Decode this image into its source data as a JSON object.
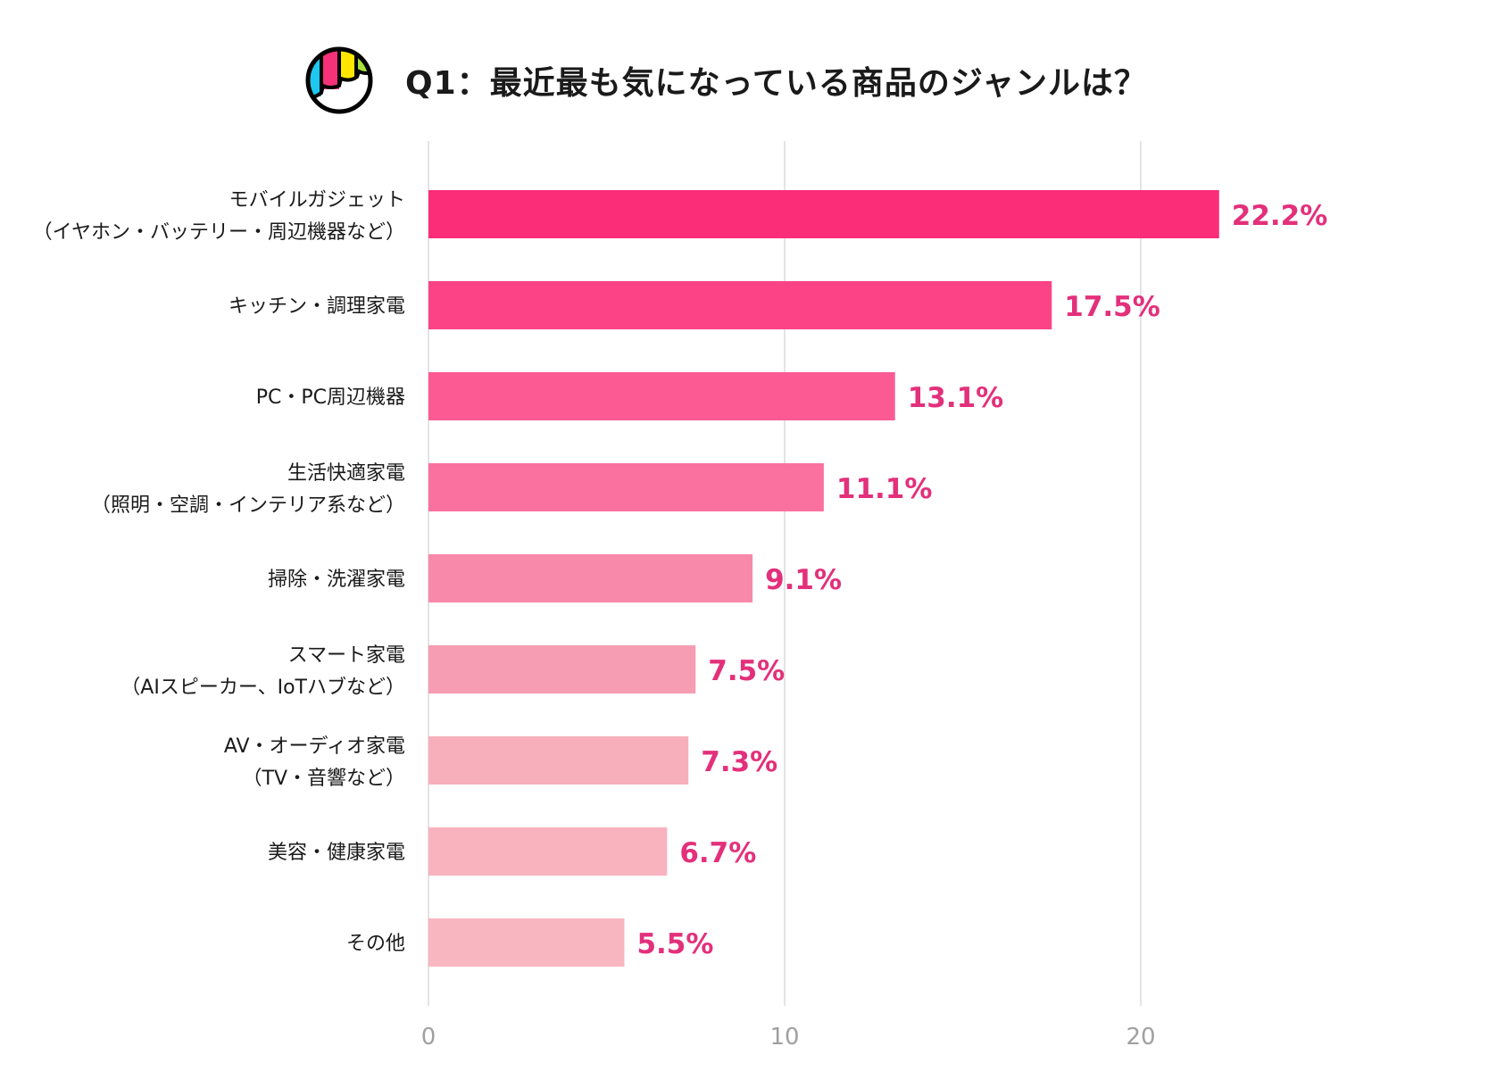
{
  "chart_data": {
    "type": "bar",
    "orientation": "horizontal",
    "title": "Q1：最近最も気になっている商品のジャンルは？",
    "categories": [
      [
        "モバイルガジェット",
        "（イヤホン・バッテリー・周辺機器など）"
      ],
      [
        "キッチン・調理家電"
      ],
      [
        "PC・PC周辺機器"
      ],
      [
        "生活快適家電",
        "（照明・空調・インテリア系など）"
      ],
      [
        "掃除・洗濯家電"
      ],
      [
        "スマート家電",
        "（AIスピーカー、IoTハブなど）"
      ],
      [
        "AV・オーディオ家電",
        "（TV・音響など）"
      ],
      [
        "美容・健康家電"
      ],
      [
        "その他"
      ]
    ],
    "values": [
      22.2,
      17.5,
      13.1,
      11.1,
      9.1,
      7.5,
      7.3,
      6.7,
      5.5
    ],
    "value_labels": [
      "22.2%",
      "17.5%",
      "13.1%",
      "11.1%",
      "9.1%",
      "7.5%",
      "7.3%",
      "6.7%",
      "5.5%"
    ],
    "bar_colors": [
      "#fb2c78",
      "#fc4385",
      "#fb5a92",
      "#fa71a0",
      "#f889aa",
      "#f79db3",
      "#f8afbc",
      "#f8b3be",
      "#f8b6c0"
    ],
    "value_label_color": "#e3307b",
    "xlim": [
      0,
      25
    ],
    "xticks": [
      0,
      10,
      20
    ],
    "xtick_labels": [
      "0",
      "10",
      "20"
    ],
    "grid": true,
    "xlabel": "",
    "ylabel": ""
  },
  "logo": {
    "icon": "brand-logo-icon",
    "colors": [
      "#1ec8f0",
      "#f5317a",
      "#ffe600",
      "#a8e23a"
    ]
  }
}
